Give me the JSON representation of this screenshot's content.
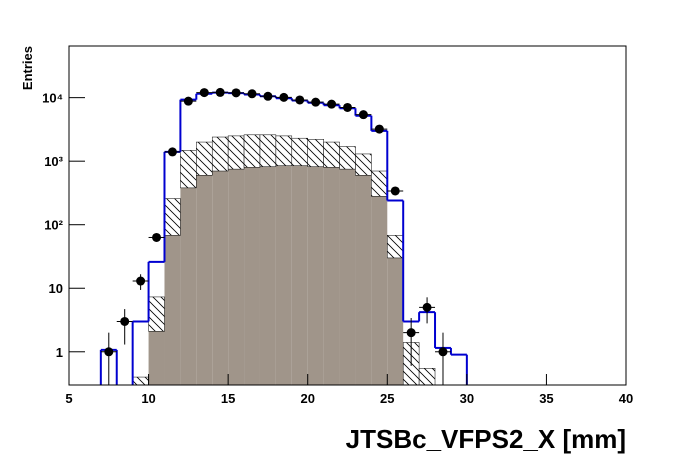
{
  "chart_data": {
    "type": "histogram",
    "xlabel": "JTSBc_VFPS2_X [mm]",
    "ylabel": "Entries",
    "log_y": true,
    "xlim": [
      5,
      40
    ],
    "ylim": [
      0.3,
      65000
    ],
    "xticks": [
      5,
      10,
      15,
      20,
      25,
      30,
      35,
      40
    ],
    "yticks": [
      1,
      10,
      {
        "value": 100,
        "label": "10²"
      },
      {
        "value": 1000,
        "label": "10³"
      },
      {
        "value": 10000,
        "label": "10⁴"
      }
    ],
    "bins": [
      5,
      6,
      7,
      8,
      9,
      10,
      11,
      12,
      13,
      14,
      15,
      16,
      17,
      18,
      19,
      20,
      21,
      22,
      23,
      24,
      25,
      26,
      27,
      28,
      29,
      30,
      31,
      32,
      33,
      34,
      35,
      36,
      37,
      38,
      39,
      40
    ],
    "series": [
      {
        "style": "fill",
        "color": "#a0958a",
        "values": [
          0,
          0,
          0,
          0,
          0,
          2.1,
          68,
          380,
          600,
          700,
          750,
          800,
          820,
          850,
          850,
          820,
          800,
          750,
          600,
          280,
          30,
          0,
          0,
          0,
          0,
          0,
          0,
          0,
          0,
          0,
          0,
          0,
          0,
          0,
          0
        ]
      },
      {
        "style": "hatch",
        "stack": true,
        "color": "#000000",
        "values": [
          0,
          0,
          0,
          0,
          0.4,
          5.2,
          190,
          1100,
          1400,
          1700,
          1750,
          1800,
          1780,
          1650,
          1450,
          1380,
          1200,
          950,
          700,
          420,
          38,
          1.4,
          0.55,
          0,
          0,
          0,
          0,
          0,
          0,
          0,
          0,
          0,
          0,
          0,
          0
        ]
      },
      {
        "style": "step",
        "color": "#0000d0",
        "values": [
          0,
          0,
          1.07,
          0,
          3,
          26,
          1400,
          9300,
          11500,
          12000,
          11800,
          11200,
          10500,
          9800,
          9000,
          8300,
          7600,
          6800,
          5200,
          3000,
          240,
          3,
          4.2,
          1.15,
          0.9,
          0,
          0,
          0,
          0,
          0,
          0,
          0,
          0,
          0,
          0
        ]
      }
    ],
    "points": {
      "color": "#000000",
      "x": [
        7.5,
        8.5,
        9.5,
        10.5,
        11.5,
        12.5,
        13.5,
        14.5,
        15.5,
        16.5,
        17.5,
        18.5,
        19.5,
        20.5,
        21.5,
        22.5,
        23.5,
        24.5,
        25.5,
        26.5,
        27.5,
        28.5
      ],
      "values": [
        1,
        3,
        13,
        63,
        1400,
        8800,
        12000,
        12100,
        11900,
        11500,
        10500,
        10100,
        9200,
        8500,
        7900,
        7000,
        5400,
        3200,
        340,
        2,
        5,
        1
      ],
      "errors": [
        1,
        1.7,
        3.6,
        7.9,
        37,
        94,
        110,
        110,
        109,
        107,
        102,
        100,
        96,
        92,
        89,
        84,
        73,
        57,
        18,
        1.4,
        2.2,
        1
      ]
    }
  }
}
